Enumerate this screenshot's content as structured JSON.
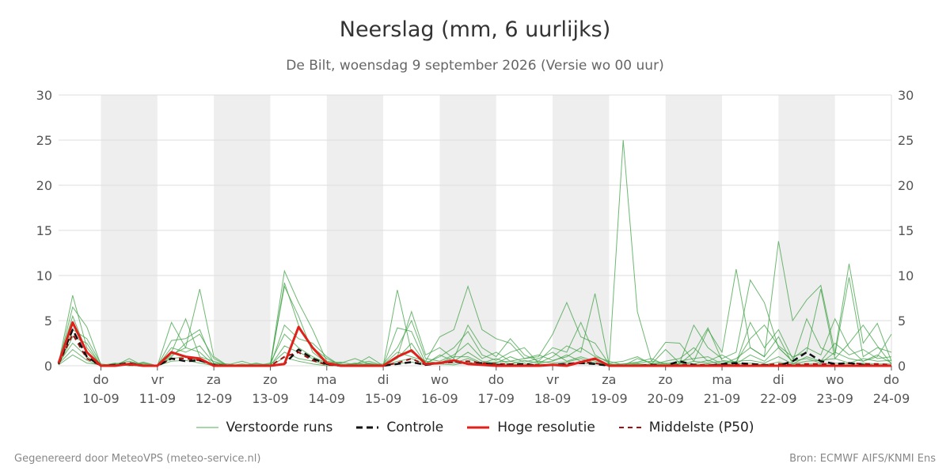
{
  "title": "Neerslag (mm, 6 uurlijks)",
  "subtitle": "De Bilt, woensdag  9 september 2026 (Versie wo 00 uur)",
  "footer_left": "Gegenereerd door MeteoVPS (meteo-service.nl)",
  "footer_right": "Bron: ECMWF AIFS/KNMI Ens",
  "chart_data": {
    "type": "line",
    "x_unit": "days (6-hourly)",
    "xlim": [
      "2026-09-09 06:00",
      "2026-09-24 00:00"
    ],
    "ylim": [
      0,
      30
    ],
    "yticks": [
      0,
      5,
      10,
      15,
      20,
      25,
      30
    ],
    "grid": true,
    "weekend_shading": [
      [
        "2026-09-10",
        "2026-09-11"
      ],
      [
        "2026-09-12",
        "2026-09-13"
      ],
      [
        "2026-09-14",
        "2026-09-15"
      ],
      [
        "2026-09-16",
        "2026-09-17"
      ],
      [
        "2026-09-18",
        "2026-09-19"
      ],
      [
        "2026-09-20",
        "2026-09-21"
      ],
      [
        "2026-09-22",
        "2026-09-23"
      ]
    ],
    "xticks": [
      {
        "day": "do",
        "date": "10-09"
      },
      {
        "day": "vr",
        "date": "11-09"
      },
      {
        "day": "za",
        "date": "12-09"
      },
      {
        "day": "zo",
        "date": "13-09"
      },
      {
        "day": "ma",
        "date": "14-09"
      },
      {
        "day": "di",
        "date": "15-09"
      },
      {
        "day": "wo",
        "date": "16-09"
      },
      {
        "day": "do",
        "date": "17-09"
      },
      {
        "day": "vr",
        "date": "18-09"
      },
      {
        "day": "za",
        "date": "19-09"
      },
      {
        "day": "zo",
        "date": "20-09"
      },
      {
        "day": "ma",
        "date": "21-09"
      },
      {
        "day": "di",
        "date": "22-09"
      },
      {
        "day": "wo",
        "date": "23-09"
      },
      {
        "day": "do",
        "date": "24-09"
      }
    ],
    "legend": [
      {
        "name": "Verstoorde runs",
        "color": "#4caf50",
        "style": "thin"
      },
      {
        "name": "Controle",
        "color": "#111111",
        "style": "dashed"
      },
      {
        "name": "Hoge resolutie",
        "color": "#e0201b",
        "style": "solid"
      },
      {
        "name": "Middelste (P50)",
        "color": "#a01010",
        "style": "dashed"
      }
    ],
    "x": [
      "09-09 06",
      "09-09 12",
      "09-09 18",
      "10-09 00",
      "10-09 06",
      "10-09 12",
      "10-09 18",
      "11-09 00",
      "11-09 06",
      "11-09 12",
      "11-09 18",
      "12-09 00",
      "12-09 06",
      "12-09 12",
      "12-09 18",
      "13-09 00",
      "13-09 06",
      "13-09 12",
      "13-09 18",
      "14-09 00",
      "14-09 06",
      "14-09 12",
      "14-09 18",
      "15-09 00",
      "15-09 06",
      "15-09 12",
      "15-09 18",
      "16-09 00",
      "16-09 06",
      "16-09 12",
      "16-09 18",
      "17-09 00",
      "17-09 06",
      "17-09 12",
      "17-09 18",
      "18-09 00",
      "18-09 06",
      "18-09 12",
      "18-09 18",
      "19-09 00",
      "19-09 06",
      "19-09 12",
      "19-09 18",
      "20-09 00",
      "20-09 06",
      "20-09 12",
      "20-09 18",
      "21-09 00",
      "21-09 06",
      "21-09 12",
      "21-09 18",
      "22-09 00",
      "22-09 06",
      "22-09 12",
      "22-09 18",
      "23-09 00",
      "23-09 06",
      "23-09 12",
      "23-09 18",
      "24-09 00"
    ],
    "series": [
      {
        "name": "Verstoorde runs",
        "member": 1,
        "values": [
          0.3,
          7.8,
          2.0,
          0.1,
          0.2,
          0.5,
          0.1,
          0.0,
          4.8,
          2.0,
          8.5,
          1.0,
          0.0,
          0.1,
          0.0,
          0.1,
          10.5,
          7.0,
          4.0,
          0.5,
          0.3,
          0.8,
          0.2,
          0.0,
          8.4,
          1.5,
          0.5,
          3.2,
          4.0,
          8.8,
          4.0,
          3.0,
          2.5,
          0.8,
          1.0,
          3.5,
          7.0,
          3.2,
          2.5,
          0.2,
          25.0,
          6.0,
          0.5,
          2.6,
          2.5,
          0.5,
          4.0,
          1.5,
          10.7,
          2.0,
          1.0,
          13.8,
          5.0,
          7.3,
          8.9,
          1.5,
          11.3,
          2.5,
          4.7,
          0.5
        ]
      },
      {
        "name": "Verstoorde runs",
        "member": 2,
        "values": [
          0.2,
          6.5,
          4.3,
          0.1,
          0.0,
          0.3,
          0.2,
          0.0,
          1.5,
          5.2,
          1.0,
          0.5,
          0.0,
          0.0,
          0.3,
          0.0,
          9.2,
          4.5,
          2.0,
          0.8,
          0.1,
          0.2,
          0.5,
          0.0,
          1.0,
          6.0,
          1.2,
          2.0,
          0.8,
          4.5,
          2.0,
          1.0,
          3.0,
          1.2,
          0.5,
          2.0,
          1.5,
          4.8,
          1.2,
          0.3,
          0.5,
          1.0,
          0.2,
          1.8,
          0.3,
          4.5,
          2.0,
          0.8,
          1.5,
          9.5,
          7.0,
          2.0,
          0.5,
          5.2,
          2.0,
          1.2,
          9.8,
          1.0,
          2.0,
          1.5
        ]
      },
      {
        "name": "Verstoorde runs",
        "member": 3,
        "values": [
          0.3,
          5.5,
          1.5,
          0.0,
          0.3,
          0.0,
          0.4,
          0.0,
          2.8,
          3.0,
          4.0,
          0.2,
          0.1,
          0.5,
          0.0,
          0.2,
          8.8,
          5.5,
          1.5,
          0.3,
          0.4,
          0.1,
          1.0,
          0.0,
          4.2,
          3.8,
          0.3,
          1.0,
          2.0,
          3.8,
          1.2,
          0.6,
          1.5,
          2.0,
          0.3,
          1.0,
          2.2,
          1.5,
          8.0,
          0.1,
          0.2,
          0.4,
          0.8,
          0.1,
          0.2,
          1.5,
          4.2,
          0.6,
          0.4,
          3.0,
          4.5,
          2.2,
          1.0,
          1.5,
          8.5,
          0.8,
          2.5,
          4.5,
          2.2,
          0.2
        ]
      },
      {
        "name": "Verstoorde runs",
        "member": 4,
        "values": [
          0.2,
          4.0,
          3.0,
          0.2,
          0.0,
          0.8,
          0.0,
          0.0,
          1.0,
          2.5,
          3.5,
          0.8,
          0.0,
          0.0,
          0.1,
          0.0,
          4.5,
          3.0,
          2.5,
          1.0,
          0.0,
          0.3,
          0.1,
          0.2,
          2.0,
          5.0,
          0.8,
          0.5,
          1.2,
          2.5,
          0.8,
          1.5,
          0.5,
          0.8,
          1.2,
          0.6,
          1.0,
          2.0,
          1.0,
          0.5,
          0.1,
          0.2,
          0.1,
          0.5,
          0.8,
          2.0,
          0.5,
          1.2,
          0.3,
          4.8,
          2.0,
          4.0,
          0.8,
          2.0,
          1.2,
          5.2,
          2.0,
          0.5,
          1.0,
          3.5
        ]
      },
      {
        "name": "Verstoorde runs",
        "member": 5,
        "values": [
          0.1,
          3.2,
          2.5,
          0.0,
          0.1,
          0.2,
          0.1,
          0.0,
          2.0,
          1.5,
          2.2,
          0.3,
          0.2,
          0.0,
          0.0,
          0.3,
          3.5,
          2.0,
          1.0,
          0.3,
          0.2,
          0.0,
          0.3,
          0.0,
          0.8,
          2.5,
          0.2,
          1.2,
          0.5,
          1.5,
          0.5,
          0.3,
          1.0,
          0.4,
          0.8,
          1.5,
          0.5,
          1.0,
          0.5,
          0.2,
          0.0,
          0.8,
          0.3,
          0.2,
          0.5,
          0.8,
          1.0,
          0.2,
          0.8,
          2.0,
          1.0,
          3.2,
          0.2,
          1.0,
          0.5,
          2.5,
          1.2,
          1.8,
          0.8,
          1.0
        ]
      },
      {
        "name": "Verstoorde runs",
        "member": 6,
        "values": [
          0.3,
          2.5,
          1.0,
          0.1,
          0.0,
          0.1,
          0.3,
          0.0,
          1.2,
          2.0,
          1.5,
          0.1,
          0.0,
          0.2,
          0.0,
          0.0,
          2.2,
          1.5,
          0.8,
          0.2,
          0.0,
          0.2,
          0.0,
          0.1,
          1.5,
          1.0,
          0.5,
          0.3,
          1.0,
          1.0,
          0.3,
          0.8,
          0.2,
          0.6,
          0.3,
          0.5,
          1.2,
          0.5,
          0.8,
          0.1,
          0.2,
          0.3,
          0.5,
          0.3,
          0.1,
          0.5,
          0.3,
          0.5,
          0.2,
          1.2,
          0.5,
          2.0,
          0.5,
          0.8,
          0.3,
          1.5,
          0.8,
          0.5,
          1.2,
          0.3
        ]
      },
      {
        "name": "Verstoorde runs",
        "member": 7,
        "values": [
          0.2,
          1.8,
          0.6,
          0.0,
          0.2,
          0.0,
          0.0,
          0.0,
          0.8,
          1.0,
          0.5,
          0.2,
          0.1,
          0.0,
          0.2,
          0.1,
          1.5,
          0.8,
          0.5,
          0.1,
          0.1,
          0.0,
          0.2,
          0.0,
          0.5,
          0.8,
          0.2,
          0.4,
          0.3,
          0.8,
          0.2,
          0.4,
          0.5,
          0.2,
          0.5,
          0.3,
          0.4,
          0.8,
          0.3,
          0.2,
          0.1,
          0.1,
          0.2,
          0.1,
          0.3,
          0.2,
          0.6,
          0.1,
          0.5,
          0.6,
          0.3,
          1.0,
          0.2,
          0.5,
          0.6,
          0.8,
          0.3,
          0.8,
          0.5,
          0.6
        ]
      },
      {
        "name": "Verstoorde runs",
        "member": 8,
        "values": [
          0.1,
          1.2,
          0.3,
          0.1,
          0.0,
          0.2,
          0.1,
          0.0,
          0.5,
          0.6,
          0.3,
          0.0,
          0.0,
          0.1,
          0.0,
          0.0,
          0.9,
          0.5,
          0.2,
          0.0,
          0.0,
          0.1,
          0.0,
          0.1,
          0.2,
          0.4,
          0.1,
          0.2,
          0.1,
          0.4,
          0.1,
          0.2,
          0.2,
          0.1,
          0.2,
          0.1,
          0.2,
          0.3,
          0.2,
          0.1,
          0.0,
          0.2,
          0.1,
          0.0,
          0.1,
          0.1,
          0.2,
          0.0,
          0.2,
          0.3,
          0.1,
          0.4,
          0.1,
          0.2,
          0.2,
          0.3,
          0.2,
          0.3,
          0.2,
          0.2
        ]
      },
      {
        "name": "Controle",
        "values": [
          0.2,
          4.0,
          1.0,
          0.0,
          0.1,
          0.3,
          0.0,
          0.0,
          0.8,
          0.5,
          0.6,
          0.1,
          0.0,
          0.0,
          0.0,
          0.0,
          0.2,
          1.8,
          0.8,
          0.2,
          0.0,
          0.0,
          0.0,
          0.0,
          0.2,
          0.4,
          0.1,
          0.3,
          0.5,
          0.2,
          0.3,
          0.1,
          0.1,
          0.2,
          0.0,
          0.1,
          0.2,
          0.3,
          0.2,
          0.0,
          0.0,
          0.0,
          0.1,
          0.0,
          0.5,
          0.1,
          0.0,
          0.2,
          0.3,
          0.2,
          0.1,
          0.0,
          0.5,
          1.5,
          0.5,
          0.2,
          0.3,
          0.1,
          0.0,
          0.0
        ]
      },
      {
        "name": "Hoge resolutie",
        "values": [
          0.3,
          4.8,
          1.5,
          0.0,
          0.0,
          0.2,
          0.0,
          0.0,
          1.5,
          1.0,
          0.8,
          0.0,
          0.0,
          0.0,
          0.0,
          0.0,
          0.2,
          4.3,
          2.0,
          0.3,
          0.0,
          0.0,
          0.0,
          0.0,
          1.0,
          1.7,
          0.2,
          0.3,
          0.6,
          0.2,
          0.1,
          0.0,
          0.0,
          0.0,
          0.0,
          0.1,
          0.0,
          0.4,
          0.8,
          0.0,
          0.0,
          0.0,
          0.0,
          0.0,
          0.0,
          0.0,
          0.0,
          0.0,
          0.0,
          0.0,
          0.0,
          0.0,
          0.0,
          0.0,
          0.0,
          0.0,
          0.0,
          0.0,
          0.0,
          0.0
        ]
      },
      {
        "name": "Middelste (P50)",
        "values": [
          0.2,
          3.5,
          0.8,
          0.0,
          0.1,
          0.1,
          0.0,
          0.0,
          0.8,
          0.8,
          0.6,
          0.1,
          0.0,
          0.0,
          0.0,
          0.0,
          1.0,
          1.5,
          0.6,
          0.1,
          0.0,
          0.0,
          0.0,
          0.0,
          0.3,
          0.8,
          0.1,
          0.3,
          0.4,
          0.5,
          0.3,
          0.2,
          0.2,
          0.1,
          0.1,
          0.1,
          0.2,
          0.4,
          0.3,
          0.0,
          0.0,
          0.0,
          0.0,
          0.0,
          0.1,
          0.1,
          0.1,
          0.1,
          0.1,
          0.2,
          0.1,
          0.2,
          0.1,
          0.2,
          0.2,
          0.2,
          0.3,
          0.2,
          0.2,
          0.1
        ]
      }
    ]
  }
}
